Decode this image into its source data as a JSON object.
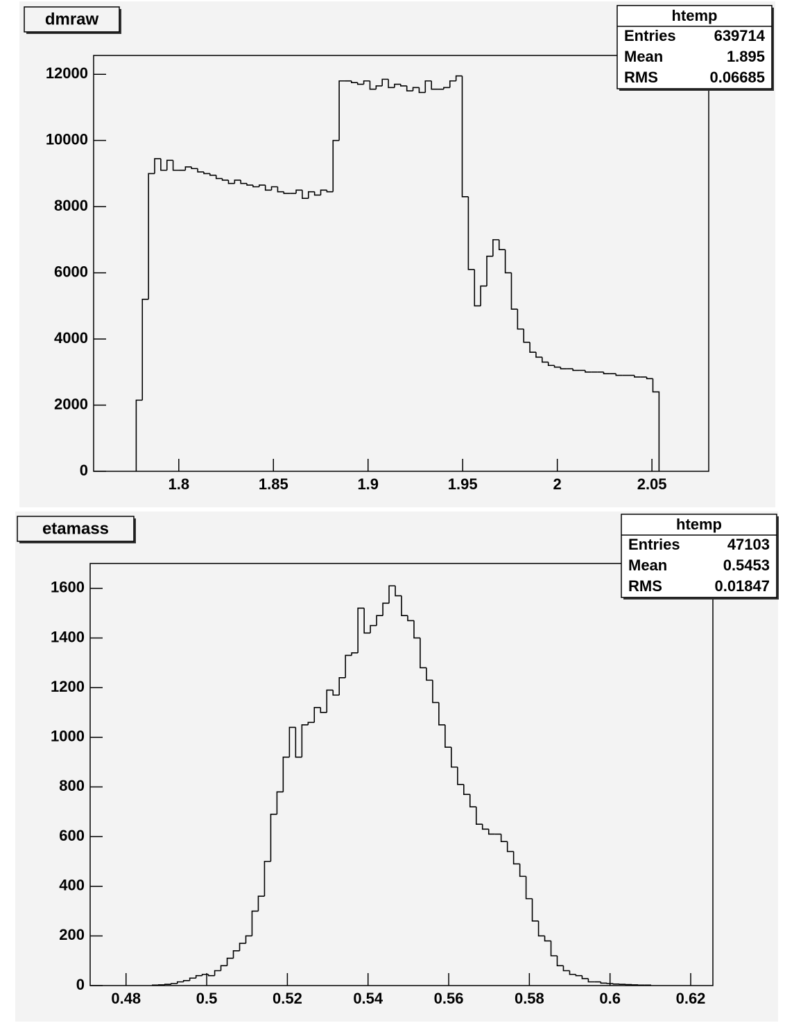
{
  "chart_data": [
    {
      "type": "histogram",
      "title": "dmraw",
      "stats": {
        "title": "htemp",
        "entries": [
          {
            "label": "Entries",
            "value": "639714"
          },
          {
            "label": "Mean",
            "value": "1.895"
          },
          {
            "label": "RMS",
            "value": "0.06685"
          }
        ]
      },
      "bins": [
        1.7775,
        1.78075,
        1.784,
        1.78725,
        1.7905,
        1.79375,
        1.797,
        1.80025,
        1.8035,
        1.80675,
        1.81,
        1.81325,
        1.8165,
        1.81975,
        1.823,
        1.82625,
        1.8295,
        1.83275,
        1.836,
        1.83925,
        1.8425,
        1.84575,
        1.849,
        1.85225,
        1.8555,
        1.85875,
        1.862,
        1.86525,
        1.8685,
        1.87175,
        1.875,
        1.87825,
        1.8815,
        1.88475,
        1.888,
        1.89125,
        1.8945,
        1.89775,
        1.901,
        1.90425,
        1.9075,
        1.91075,
        1.914,
        1.91725,
        1.9205,
        1.92375,
        1.927,
        1.93025,
        1.9335,
        1.93675,
        1.94,
        1.94325,
        1.9465,
        1.94975,
        1.953,
        1.95625,
        1.9595,
        1.96275,
        1.966,
        1.96925,
        1.9725,
        1.97575,
        1.979,
        1.98225,
        1.9855,
        1.98875,
        1.992,
        1.99525,
        1.9985,
        2.00175,
        2.005,
        2.00825,
        2.0115,
        2.01475,
        2.018,
        2.02125,
        2.0245,
        2.02775,
        2.031,
        2.03425,
        2.0375,
        2.04075,
        2.044,
        2.04725,
        2.0505,
        2.05375
      ],
      "values": [
        2150,
        5200,
        9000,
        9450,
        9100,
        9400,
        9100,
        9100,
        9200,
        9150,
        9050,
        9000,
        8950,
        8850,
        8800,
        8700,
        8800,
        8700,
        8650,
        8600,
        8650,
        8500,
        8600,
        8450,
        8400,
        8400,
        8500,
        8250,
        8450,
        8350,
        8500,
        8450,
        10000,
        11800,
        11800,
        11750,
        11700,
        11800,
        11550,
        11650,
        11850,
        11600,
        11700,
        11650,
        11500,
        11600,
        11450,
        11800,
        11550,
        11550,
        11600,
        11800,
        11950,
        8300,
        6100,
        5000,
        5600,
        6500,
        7000,
        6700,
        6000,
        4900,
        4300,
        3900,
        3600,
        3450,
        3300,
        3200,
        3150,
        3100,
        3100,
        3050,
        3050,
        3000,
        3000,
        3000,
        2950,
        2950,
        2900,
        2900,
        2900,
        2850,
        2850,
        2800,
        2400
      ],
      "color": "#000000",
      "xlim": [
        1.755,
        2.08
      ],
      "xticks": [
        1.8,
        1.85,
        1.9,
        1.95,
        2,
        2.05
      ],
      "ylim": [
        0,
        12570
      ],
      "yticks": [
        0,
        2000,
        4000,
        6000,
        8000,
        10000,
        12000
      ],
      "grid": false
    },
    {
      "type": "histogram",
      "title": "etamass",
      "stats": {
        "title": "htemp",
        "entries": [
          {
            "label": "Entries",
            "value": "47103"
          },
          {
            "label": "Mean",
            "value": "0.5453"
          },
          {
            "label": "RMS",
            "value": "0.01847"
          }
        ]
      },
      "bins": [
        0.48654,
        0.48808,
        0.48963,
        0.49117,
        0.49272,
        0.49426,
        0.4958,
        0.49735,
        0.49889,
        0.50044,
        0.50198,
        0.50352,
        0.50507,
        0.50661,
        0.50816,
        0.5097,
        0.51124,
        0.51279,
        0.51433,
        0.51588,
        0.51742,
        0.51896,
        0.52051,
        0.52205,
        0.5236,
        0.52514,
        0.52668,
        0.52823,
        0.52977,
        0.53132,
        0.53286,
        0.5344,
        0.53595,
        0.53749,
        0.53904,
        0.54058,
        0.54212,
        0.54367,
        0.54521,
        0.54676,
        0.5483,
        0.54984,
        0.55139,
        0.55293,
        0.55448,
        0.55602,
        0.55756,
        0.55911,
        0.56065,
        0.5622,
        0.56374,
        0.56528,
        0.56683,
        0.56837,
        0.56992,
        0.57146,
        0.573,
        0.57455,
        0.57609,
        0.57764,
        0.57918,
        0.58072,
        0.58227,
        0.58381,
        0.58536,
        0.5869,
        0.58844,
        0.58999,
        0.59153,
        0.59308,
        0.59462,
        0.59616,
        0.59771,
        0.59925,
        0.6008,
        0.60234,
        0.60388,
        0.60543,
        0.60697,
        0.60852,
        0.61006
      ],
      "values": [
        2,
        3,
        5,
        8,
        15,
        20,
        30,
        40,
        45,
        40,
        60,
        80,
        110,
        140,
        170,
        200,
        300,
        360,
        500,
        690,
        780,
        920,
        1040,
        920,
        1050,
        1060,
        1120,
        1100,
        1190,
        1170,
        1240,
        1330,
        1340,
        1520,
        1420,
        1450,
        1490,
        1540,
        1610,
        1570,
        1490,
        1470,
        1400,
        1280,
        1230,
        1140,
        1050,
        960,
        880,
        810,
        770,
        720,
        650,
        630,
        610,
        610,
        580,
        540,
        490,
        440,
        350,
        260,
        200,
        180,
        120,
        80,
        60,
        45,
        40,
        28,
        15,
        15,
        10,
        8,
        6,
        5,
        4,
        3,
        2,
        2
      ],
      "color": "#000000",
      "xlim": [
        0.4711,
        0.6255
      ],
      "xticks": [
        0.48,
        0.5,
        0.52,
        0.54,
        0.56,
        0.58,
        0.6,
        0.62
      ],
      "ylim": [
        0,
        1700
      ],
      "yticks": [
        0,
        200,
        400,
        600,
        800,
        1000,
        1200,
        1400,
        1600
      ],
      "grid": false
    }
  ]
}
